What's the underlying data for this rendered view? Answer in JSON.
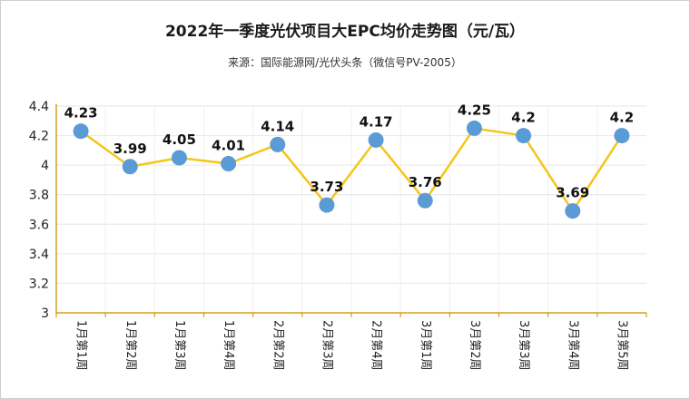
{
  "chart_data": {
    "type": "line",
    "title": "2022年一季度光伏项目大EPC均价走势图（元/瓦）",
    "subtitle": "来源：国际能源网/光伏头条（微信号PV-2005）",
    "categories": [
      "1月第1周",
      "1月第2周",
      "1月第3周",
      "1月第4周",
      "2月第2周",
      "2月第3周",
      "2月第4周",
      "3月第1周",
      "3月第2周",
      "3月第3周",
      "3月第4周",
      "3月第5周"
    ],
    "values": [
      4.23,
      3.99,
      4.05,
      4.01,
      4.14,
      3.73,
      4.17,
      3.76,
      4.25,
      4.2,
      3.69,
      4.2
    ],
    "value_labels": [
      "4.23",
      "3.99",
      "4.05",
      "4.01",
      "4.14",
      "3.73",
      "4.17",
      "3.76",
      "4.25",
      "4.2",
      "3.69",
      "4.2"
    ],
    "ylim": [
      3,
      4.4
    ],
    "yticks": [
      "3",
      "3.2",
      "3.4",
      "3.6",
      "3.8",
      "4",
      "4.2",
      "4.4"
    ],
    "xlabel": "",
    "ylabel": "",
    "grid": true,
    "line_color": "#f5c518",
    "marker_color": "#5b9bd5",
    "axis_color": "#d4a017"
  }
}
